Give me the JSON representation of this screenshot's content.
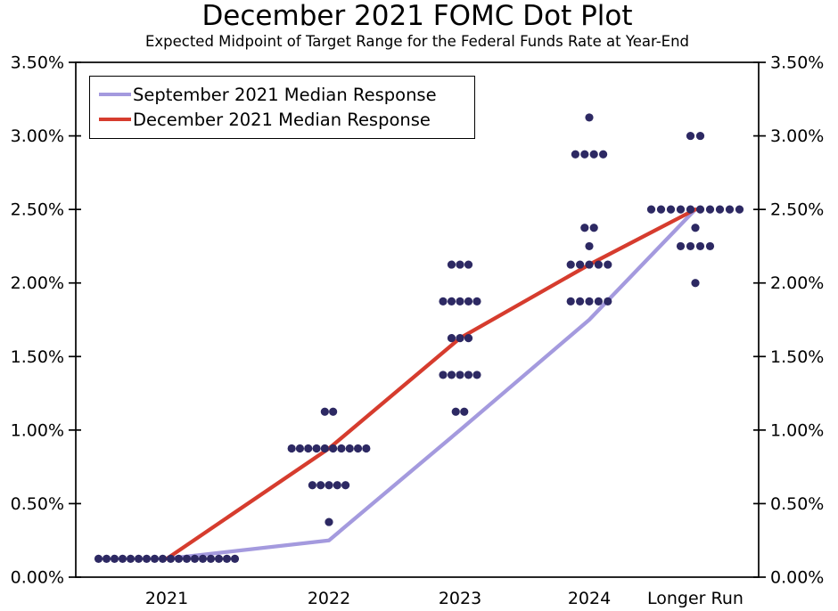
{
  "title": "December 2021 FOMC Dot Plot",
  "subtitle": "Expected Midpoint of Target Range for the Federal Funds Rate at Year-End",
  "chart_data": {
    "type": "scatter",
    "subtype": "fomc-dot-plot",
    "title": "December 2021 FOMC Dot Plot",
    "subtitle": "Expected Midpoint of Target Range for the Federal Funds Rate at Year-End",
    "grid": false,
    "legend_position": "top-left",
    "ylim": [
      0,
      3.5
    ],
    "y_tick_step": 0.5,
    "y_tick_labels": [
      "0.00%",
      "0.50%",
      "1.00%",
      "1.50%",
      "2.00%",
      "2.50%",
      "3.00%",
      "3.50%"
    ],
    "y_axis_sides": [
      "left",
      "right"
    ],
    "categories": [
      "2021",
      "2022",
      "2023",
      "2024",
      "Longer Run"
    ],
    "dot_color": "#2d2963",
    "dot_distributions": [
      {
        "category": "2021",
        "dots": [
          {
            "value": 0.125,
            "count": 18
          }
        ]
      },
      {
        "category": "2022",
        "dots": [
          {
            "value": 1.125,
            "count": 2
          },
          {
            "value": 0.875,
            "count": 10
          },
          {
            "value": 0.625,
            "count": 5
          },
          {
            "value": 0.375,
            "count": 1
          }
        ]
      },
      {
        "category": "2023",
        "dots": [
          {
            "value": 2.125,
            "count": 3
          },
          {
            "value": 1.875,
            "count": 5
          },
          {
            "value": 1.625,
            "count": 3
          },
          {
            "value": 1.375,
            "count": 5
          },
          {
            "value": 1.125,
            "count": 2
          }
        ]
      },
      {
        "category": "2024",
        "dots": [
          {
            "value": 3.125,
            "count": 1
          },
          {
            "value": 2.875,
            "count": 4
          },
          {
            "value": 2.375,
            "count": 2
          },
          {
            "value": 2.25,
            "count": 1
          },
          {
            "value": 2.125,
            "count": 5
          },
          {
            "value": 1.875,
            "count": 5
          }
        ]
      },
      {
        "category": "Longer Run",
        "dots": [
          {
            "value": 3.0,
            "count": 2
          },
          {
            "value": 2.5,
            "count": 10
          },
          {
            "value": 2.375,
            "count": 1
          },
          {
            "value": 2.25,
            "count": 4
          },
          {
            "value": 2.0,
            "count": 1
          }
        ]
      }
    ],
    "series": [
      {
        "name": "September 2021 Median Response",
        "color": "#a49ade",
        "values": [
          0.125,
          0.25,
          1.0,
          1.75,
          2.5
        ]
      },
      {
        "name": "December 2021 Median Response",
        "color": "#d63c2e",
        "values": [
          0.125,
          0.875,
          1.625,
          2.125,
          2.5
        ]
      }
    ]
  },
  "colors": {
    "dot": "#2d2963",
    "september_line": "#a49ade",
    "december_line": "#d63c2e",
    "axis": "#000000",
    "background": "#ffffff"
  }
}
